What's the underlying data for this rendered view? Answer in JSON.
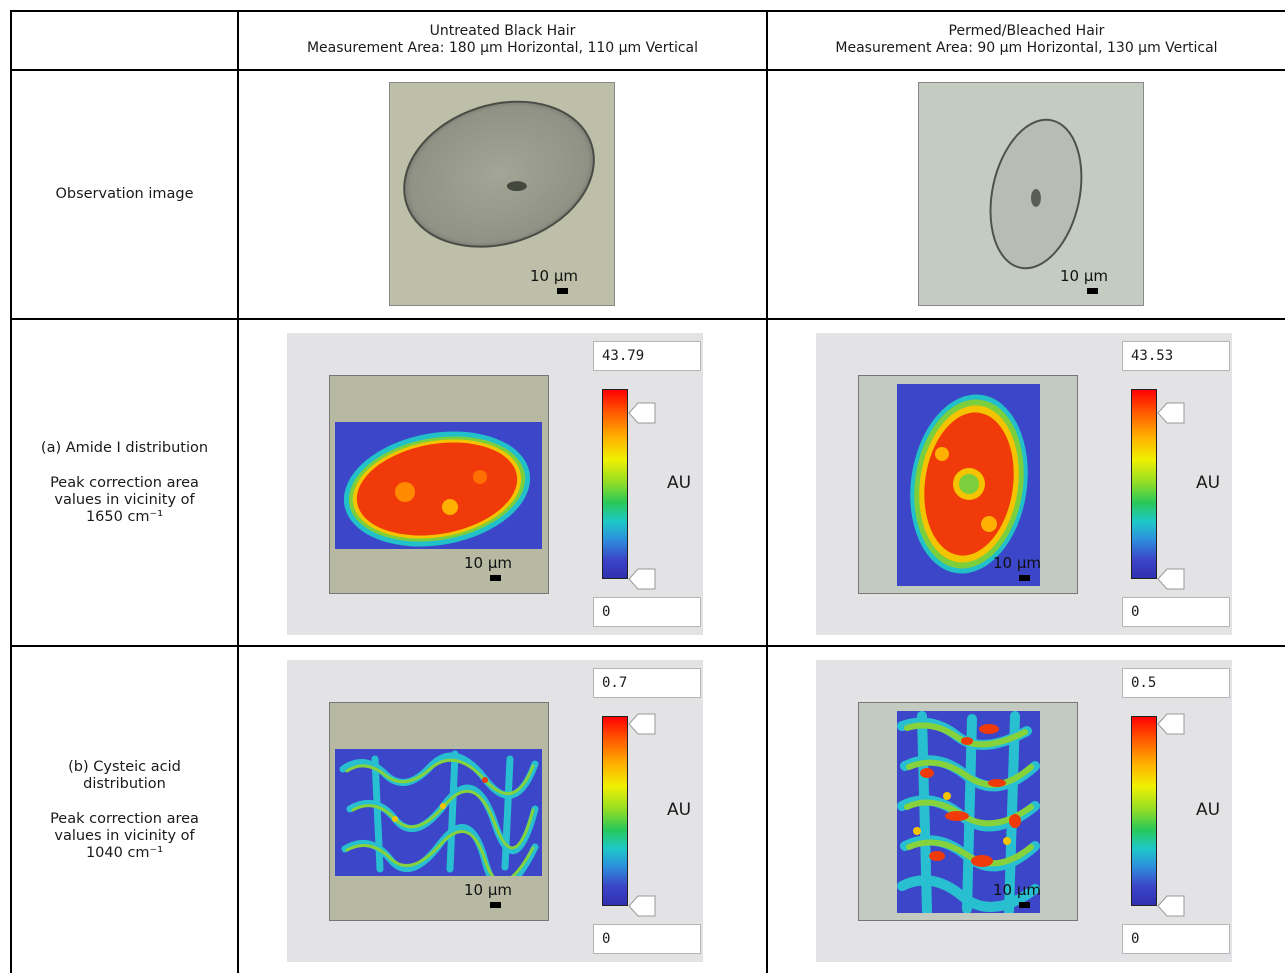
{
  "columns": [
    {
      "title": "Untreated Black Hair",
      "measurement": "Measurement Area: 180 µm Horizontal, 110 µm Vertical"
    },
    {
      "title": "Permed/Bleached Hair",
      "measurement": "Measurement Area: 90 µm Horizontal, 130 µm Vertical"
    }
  ],
  "rows": {
    "observation": {
      "label": "Observation image"
    },
    "amide": {
      "label": "(a) Amide I distribution",
      "desc_line1": "Peak correction area",
      "desc_line2": "values in vicinity of",
      "desc_line3": "1650 cm⁻¹"
    },
    "cysteic": {
      "label_line1": "(b) Cysteic acid",
      "label_line2": "distribution",
      "desc_line1": "Peak correction area",
      "desc_line2": "values in vicinity of",
      "desc_line3": "1040 cm⁻¹"
    }
  },
  "scale_label": "10 µm",
  "unit_label": "AU",
  "colorbar_ranges": {
    "amide_untreated": {
      "max": "43.79",
      "min": "0"
    },
    "amide_permed": {
      "max": "43.53",
      "min": "0"
    },
    "cysteic_untreated": {
      "max": "0.7",
      "min": "0"
    },
    "cysteic_permed": {
      "max": "0.5",
      "min": "0"
    }
  },
  "colors": {
    "grid": "#000000",
    "panel_bg": "#e3e3e5",
    "image_bg": "#bdbfa8",
    "map_low": "#3c46c8",
    "map_high": "#ff0000"
  }
}
